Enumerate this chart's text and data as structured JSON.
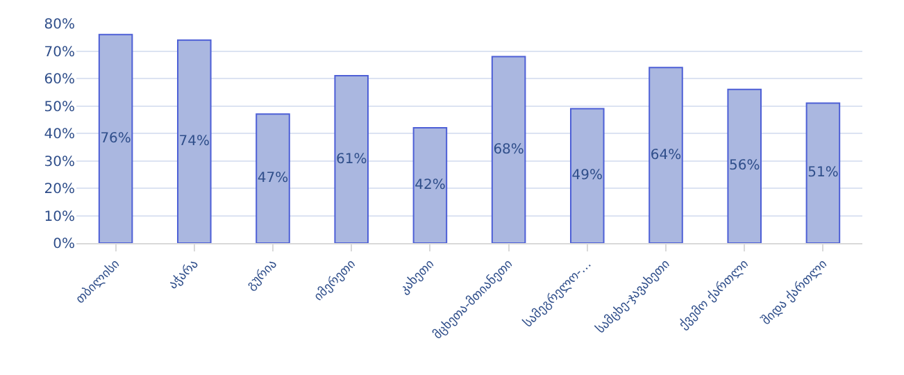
{
  "chart_data": {
    "type": "bar",
    "categories": [
      "თბილისი",
      "აჭარა",
      "გურია",
      "იმერეთი",
      "კახეთი",
      "მცხეთა-მთიანეთი",
      "სამეგრელო-…",
      "სამცხე-ჯავახეთი",
      "ქვემო ქართლი",
      "შიდა ქართლი"
    ],
    "values": [
      76,
      74,
      47,
      61,
      42,
      68,
      49,
      64,
      56,
      51
    ],
    "value_labels": [
      "76%",
      "74%",
      "47%",
      "61%",
      "42%",
      "68%",
      "49%",
      "64%",
      "56%",
      "51%"
    ],
    "color": "#aab7e0",
    "ylim": [
      0,
      80
    ],
    "yticks": [
      {
        "value": 0,
        "label": "0%"
      },
      {
        "value": 10,
        "label": "10%"
      },
      {
        "value": 20,
        "label": "20%"
      },
      {
        "value": 30,
        "label": "30%"
      },
      {
        "value": 40,
        "label": "40%"
      },
      {
        "value": 50,
        "label": "50%"
      },
      {
        "value": 60,
        "label": "60%"
      },
      {
        "value": 70,
        "label": "70%"
      },
      {
        "value": 80,
        "label": "80%"
      }
    ],
    "grid": "y"
  }
}
